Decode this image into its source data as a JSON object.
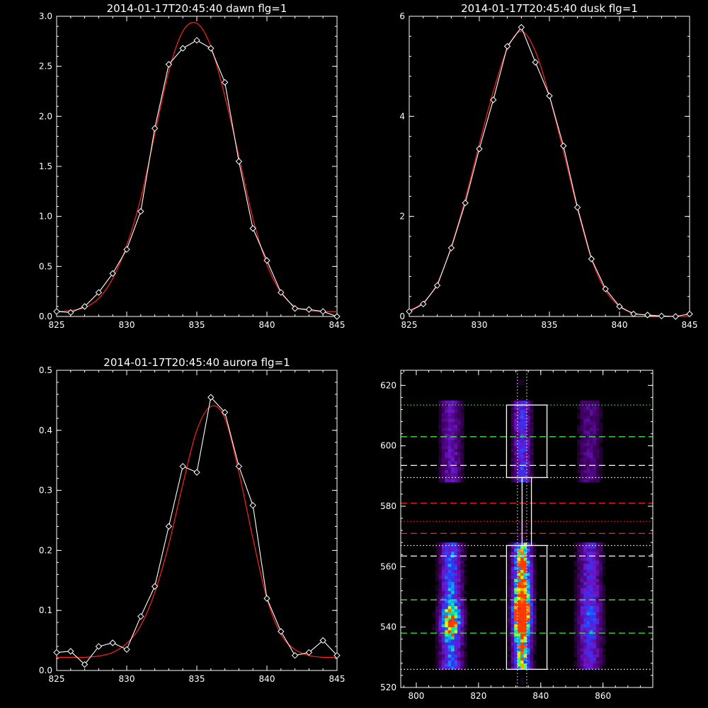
{
  "chart_data": [
    {
      "type": "line",
      "title": "2014-01-17T20:45:40 dawn flg=1",
      "xlim": [
        825,
        845
      ],
      "ylim": [
        0,
        3.0
      ],
      "xticks": [
        "825",
        "830",
        "835",
        "840",
        "845"
      ],
      "yticks": [
        "0.0",
        "0.5",
        "1.0",
        "1.5",
        "2.0",
        "2.5",
        "3.0"
      ],
      "series": [
        {
          "color": "#ffffff",
          "marker": "diamond",
          "x": [
            825,
            826,
            827,
            828,
            829,
            830,
            831,
            832,
            833,
            834,
            835,
            836,
            837,
            838,
            839,
            840,
            841,
            842,
            843,
            844,
            845
          ],
          "y": [
            0.05,
            0.04,
            0.1,
            0.24,
            0.43,
            0.67,
            1.05,
            1.88,
            2.52,
            2.68,
            2.76,
            2.68,
            2.34,
            1.55,
            0.88,
            0.56,
            0.24,
            0.08,
            0.07,
            0.05,
            0.0
          ]
        },
        {
          "color": "#ff2020",
          "marker": "none",
          "x": [
            825,
            826,
            827,
            828,
            829,
            830,
            831,
            832,
            833,
            834,
            835,
            836,
            837,
            838,
            839,
            840,
            841,
            842,
            843,
            844,
            845
          ],
          "y": [
            0.05,
            0.06,
            0.09,
            0.18,
            0.38,
            0.71,
            1.18,
            1.82,
            2.45,
            2.85,
            2.93,
            2.7,
            2.2,
            1.6,
            0.98,
            0.52,
            0.24,
            0.1,
            0.06,
            0.05,
            0.05
          ]
        }
      ]
    },
    {
      "type": "line",
      "title": "2014-01-17T20:45:40 dusk flg=1",
      "xlim": [
        825,
        845
      ],
      "ylim": [
        0,
        6
      ],
      "xticks": [
        "825",
        "830",
        "835",
        "840",
        "845"
      ],
      "yticks": [
        "0",
        "2",
        "4",
        "6"
      ],
      "series": [
        {
          "color": "#ffffff",
          "marker": "diamond",
          "x": [
            825,
            826,
            827,
            828,
            829,
            830,
            831,
            832,
            833,
            834,
            835,
            836,
            837,
            838,
            839,
            840,
            841,
            842,
            843,
            844,
            845
          ],
          "y": [
            0.1,
            0.25,
            0.62,
            1.37,
            2.27,
            3.35,
            4.33,
            5.4,
            5.78,
            5.08,
            4.41,
            3.41,
            2.18,
            1.15,
            0.55,
            0.2,
            0.05,
            0.03,
            0.01,
            0.0,
            0.05
          ]
        },
        {
          "color": "#ff2020",
          "marker": "none",
          "x": [
            825,
            826,
            827,
            828,
            829,
            830,
            831,
            832,
            833,
            834,
            835,
            836,
            837,
            838,
            839,
            840,
            841,
            842,
            843,
            844,
            845
          ],
          "y": [
            0.12,
            0.28,
            0.66,
            1.4,
            2.35,
            3.45,
            4.5,
            5.35,
            5.7,
            5.3,
            4.4,
            3.3,
            2.15,
            1.15,
            0.52,
            0.2,
            0.07,
            0.02,
            0.01,
            0.0,
            0.0
          ]
        }
      ]
    },
    {
      "type": "line",
      "title": "2014-01-17T20:45:40 aurora flg=1",
      "xlim": [
        825,
        845
      ],
      "ylim": [
        0,
        0.5
      ],
      "xticks": [
        "825",
        "830",
        "835",
        "840",
        "845"
      ],
      "yticks": [
        "0.0",
        "0.1",
        "0.2",
        "0.3",
        "0.4",
        "0.5"
      ],
      "series": [
        {
          "color": "#ffffff",
          "marker": "diamond",
          "x": [
            825,
            826,
            827,
            828,
            829,
            830,
            831,
            832,
            833,
            834,
            835,
            836,
            837,
            838,
            839,
            840,
            841,
            842,
            843,
            844,
            845
          ],
          "y": [
            0.03,
            0.032,
            0.01,
            0.04,
            0.046,
            0.035,
            0.09,
            0.14,
            0.24,
            0.34,
            0.33,
            0.455,
            0.43,
            0.34,
            0.275,
            0.12,
            0.065,
            0.025,
            0.03,
            0.05,
            0.025
          ]
        },
        {
          "color": "#ff2020",
          "marker": "none",
          "x": [
            825,
            826,
            827,
            828,
            829,
            830,
            831,
            832,
            833,
            834,
            835,
            836,
            837,
            838,
            839,
            840,
            841,
            842,
            843,
            844,
            845
          ],
          "y": [
            0.022,
            0.022,
            0.022,
            0.024,
            0.03,
            0.045,
            0.075,
            0.13,
            0.21,
            0.31,
            0.4,
            0.44,
            0.42,
            0.33,
            0.22,
            0.12,
            0.06,
            0.035,
            0.025,
            0.022,
            0.022
          ]
        }
      ]
    },
    {
      "type": "heatmap",
      "title": "",
      "xlim": [
        795,
        876
      ],
      "ylim": [
        520,
        625
      ],
      "xticks": [
        "800",
        "820",
        "840",
        "860"
      ],
      "yticks": [
        "520",
        "540",
        "560",
        "580",
        "600",
        "620"
      ],
      "columns_x": [
        811,
        833.5,
        855
      ],
      "boxes": [
        {
          "x": [
            829,
            842
          ],
          "y": [
            589.5,
            613.5
          ]
        },
        {
          "x": [
            829,
            842
          ],
          "y": [
            526,
            567
          ]
        },
        {
          "x": [
            834,
            837
          ],
          "y": [
            567,
            589.5
          ]
        }
      ],
      "vlines_x": [
        832.5,
        835.5
      ],
      "hlines": [
        {
          "y": 613.5,
          "color": "#44ff44",
          "style": "dotted"
        },
        {
          "y": 603,
          "color": "#44ff44",
          "style": "dashed"
        },
        {
          "y": 593.5,
          "color": "#ffffff",
          "style": "dashed"
        },
        {
          "y": 589.5,
          "color": "#ffffff",
          "style": "dotted"
        },
        {
          "y": 581,
          "color": "#ff2020",
          "style": "dashed"
        },
        {
          "y": 575,
          "color": "#ff2020",
          "style": "dotted"
        },
        {
          "y": 571,
          "color": "#ff2020",
          "style": "dashed"
        },
        {
          "y": 567,
          "color": "#ffffff",
          "style": "dotted"
        },
        {
          "y": 563.5,
          "color": "#ffffff",
          "style": "dashed"
        },
        {
          "y": 549,
          "color": "#44ff44",
          "style": "dashed"
        },
        {
          "y": 538,
          "color": "#44ff44",
          "style": "dashed"
        },
        {
          "y": 526,
          "color": "#ffffff",
          "style": "dotted"
        }
      ],
      "markers": [
        {
          "x": 811,
          "y": 542,
          "color": "#ff2020"
        },
        {
          "x": 833,
          "y": 546,
          "color": "#ff2020"
        },
        {
          "x": 833,
          "y": 542,
          "color": "#ff2020"
        }
      ]
    }
  ]
}
